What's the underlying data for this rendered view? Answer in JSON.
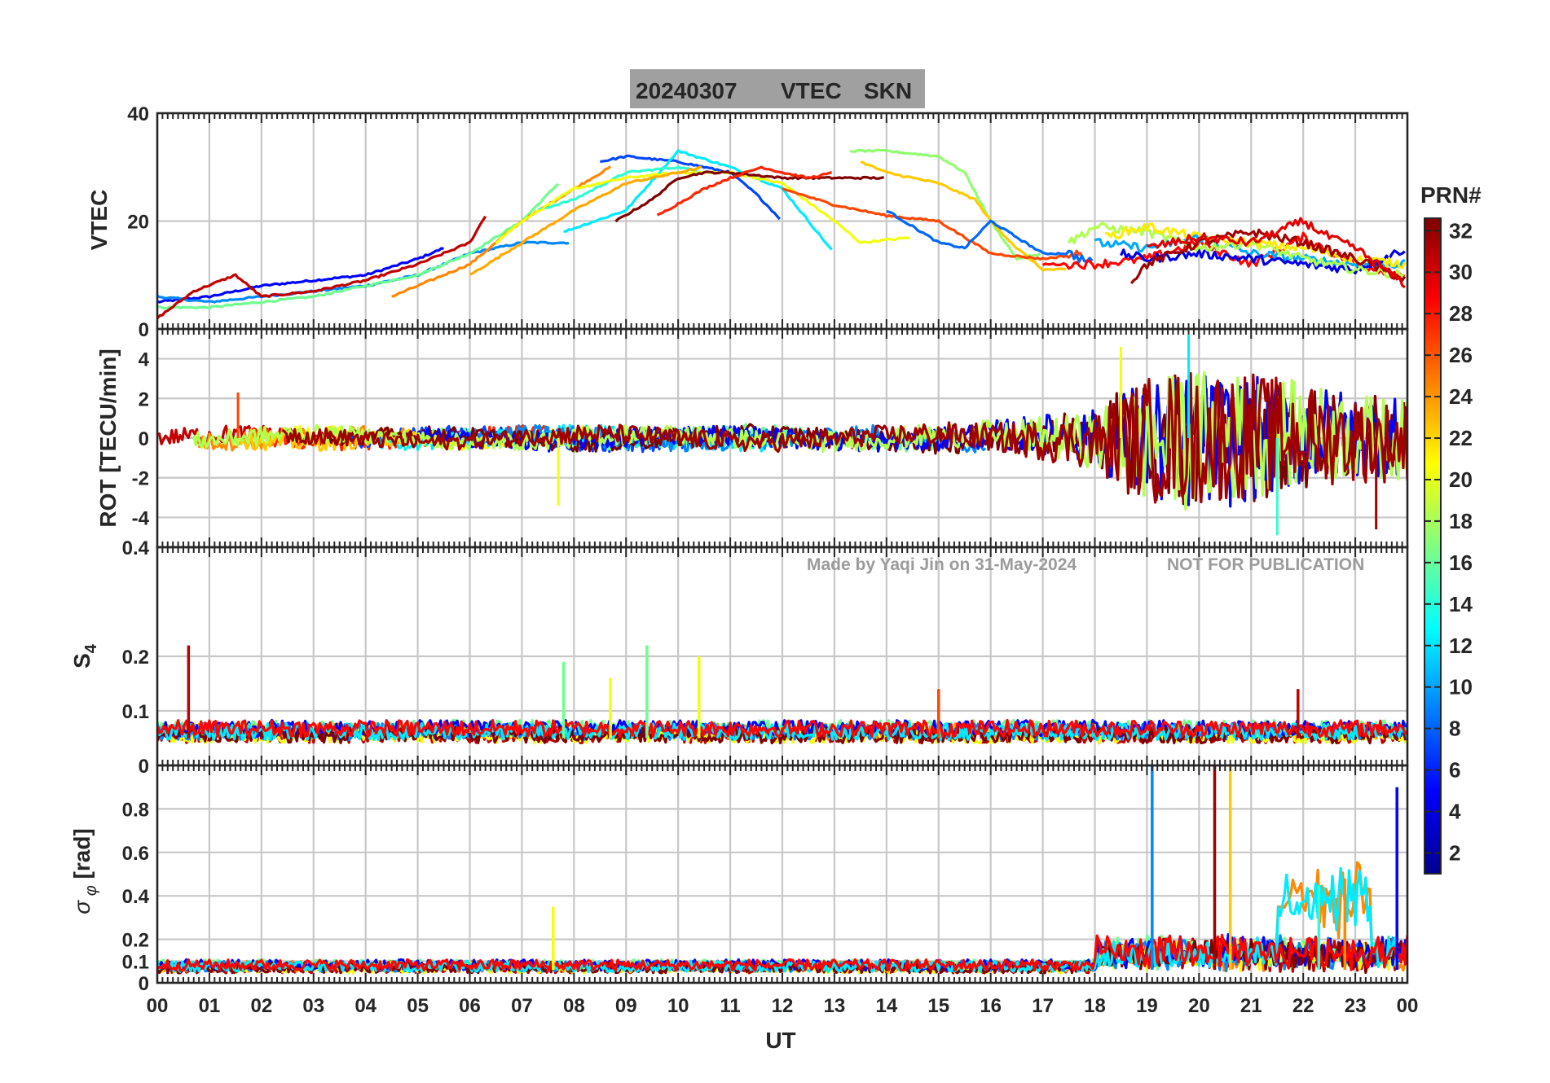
{
  "title": {
    "date": "20240307",
    "quantity": "VTEC",
    "station": "SKN"
  },
  "watermark": {
    "author": "Made by Yaqi Jin on 31-May-2024",
    "notice": "NOT FOR PUBLICATION"
  },
  "x_axis": {
    "label": "UT",
    "range_hours": [
      0,
      24
    ],
    "ticks": [
      "00",
      "01",
      "02",
      "03",
      "04",
      "05",
      "06",
      "07",
      "08",
      "09",
      "10",
      "11",
      "12",
      "13",
      "14",
      "15",
      "16",
      "17",
      "18",
      "19",
      "20",
      "21",
      "22",
      "23",
      "00"
    ]
  },
  "colorbar": {
    "label": "PRN#",
    "range": [
      1,
      32
    ],
    "ticks": [
      "2",
      "4",
      "6",
      "8",
      "10",
      "12",
      "14",
      "16",
      "18",
      "20",
      "22",
      "24",
      "26",
      "28",
      "30",
      "32"
    ],
    "colormap": [
      "#00008f",
      "#0000ff",
      "#0080ff",
      "#00ffff",
      "#80ff80",
      "#ffff00",
      "#ff8000",
      "#ff0000",
      "#800000"
    ]
  },
  "chart_data": [
    {
      "type": "line",
      "panel": "vtec",
      "ylabel": "VTEC",
      "ylim": [
        0,
        40
      ],
      "yticks": [
        "0",
        "20",
        "40"
      ],
      "series": [
        {
          "prn": 5,
          "x": [
            0,
            1,
            2,
            3,
            4,
            5,
            5.5
          ],
          "y": [
            5,
            6,
            8,
            9,
            10,
            13,
            15
          ]
        },
        {
          "prn": 9,
          "x": [
            0,
            1,
            2,
            3,
            4,
            5,
            6,
            7,
            7.9
          ],
          "y": [
            6,
            5,
            6,
            7,
            8,
            10,
            14,
            16,
            16
          ]
        },
        {
          "prn": 16,
          "x": [
            0,
            1,
            2,
            3,
            4,
            5,
            6,
            7,
            7.7
          ],
          "y": [
            4,
            4,
            5,
            6,
            8,
            10,
            14,
            20,
            27
          ]
        },
        {
          "prn": 24,
          "x": [
            4.5,
            5,
            6,
            7,
            8,
            8.7
          ],
          "y": [
            6,
            8,
            12,
            20,
            26,
            30
          ]
        },
        {
          "prn": 30,
          "x": [
            0,
            0.7,
            1.5,
            2,
            3,
            4,
            5,
            6,
            6.3
          ],
          "y": [
            2,
            7,
            10,
            6,
            7,
            9,
            12,
            16,
            21
          ]
        },
        {
          "prn": 7,
          "x": [
            8.5,
            9,
            10,
            11,
            11.5,
            12
          ],
          "y": [
            31,
            32,
            31,
            29,
            25,
            20
          ]
        },
        {
          "prn": 12,
          "x": [
            7.8,
            9,
            10,
            11,
            12,
            12.5,
            13
          ],
          "y": [
            18,
            22,
            33,
            30,
            26,
            20,
            14
          ]
        },
        {
          "prn": 14,
          "x": [
            7.3,
            8,
            9,
            10,
            10.5
          ],
          "y": [
            22,
            24,
            29,
            30,
            29
          ]
        },
        {
          "prn": 20,
          "x": [
            6.5,
            7,
            8,
            9,
            10,
            11,
            12,
            13,
            13.5,
            14.5
          ],
          "y": [
            16,
            20,
            26,
            28,
            29,
            29,
            27,
            20,
            16,
            17
          ]
        },
        {
          "prn": 23,
          "x": [
            6,
            7,
            8,
            9,
            10,
            10.5
          ],
          "y": [
            10,
            16,
            22,
            27,
            29,
            30
          ]
        },
        {
          "prn": 32,
          "x": [
            8.8,
            9.5,
            10,
            10.5,
            11,
            12,
            13,
            14
          ],
          "y": [
            20,
            24,
            28,
            29,
            29,
            28,
            28,
            28
          ]
        },
        {
          "prn": 27,
          "x": [
            9.6,
            10.5,
            11,
            11.6,
            12,
            12.5,
            13
          ],
          "y": [
            21,
            26,
            28,
            30,
            29,
            28,
            29
          ]
        },
        {
          "prn": 17,
          "x": [
            13.3,
            14,
            15,
            15.5,
            16,
            16.5,
            17
          ],
          "y": [
            33,
            33,
            32,
            29,
            20,
            13,
            14
          ]
        },
        {
          "prn": 22,
          "x": [
            13.5,
            14,
            15,
            15.7,
            16,
            16.5,
            17,
            17.5
          ],
          "y": [
            31,
            29,
            27,
            24,
            20,
            15,
            11,
            11
          ]
        },
        {
          "prn": 26,
          "x": [
            12,
            13,
            14,
            15,
            15.5,
            16,
            17,
            17.8
          ],
          "y": [
            26,
            23,
            21,
            20,
            17,
            14,
            13,
            14
          ]
        },
        {
          "prn": 8,
          "x": [
            14,
            15,
            15.5,
            16,
            17,
            17.5,
            18
          ],
          "y": [
            22,
            16,
            15,
            20,
            14,
            14,
            12
          ]
        },
        {
          "prn": 28,
          "x": [
            17,
            18,
            19,
            20,
            21,
            22,
            23,
            24
          ],
          "y": [
            12,
            12,
            13,
            16,
            12,
            17,
            12,
            10
          ]
        },
        {
          "prn": 10,
          "x": [
            18,
            19,
            20,
            21,
            22,
            23,
            24
          ],
          "y": [
            16,
            15,
            17,
            14,
            13,
            12,
            12
          ]
        },
        {
          "prn": 4,
          "x": [
            18.5,
            19,
            20,
            21,
            22,
            23,
            24
          ],
          "y": [
            14,
            13,
            14,
            13,
            12,
            11,
            15
          ]
        },
        {
          "prn": 18,
          "x": [
            17.5,
            18,
            19,
            20,
            21,
            22,
            23,
            24
          ],
          "y": [
            16,
            19,
            18,
            15,
            16,
            13,
            11,
            10
          ]
        },
        {
          "prn": 21,
          "x": [
            18.2,
            19,
            20,
            21,
            22,
            22.5,
            23,
            24
          ],
          "y": [
            17,
            19,
            17,
            16,
            15,
            14,
            13,
            12
          ]
        },
        {
          "prn": 31,
          "x": [
            18.7,
            19,
            20,
            21,
            21.5,
            22,
            23,
            24
          ],
          "y": [
            9,
            12,
            16,
            18,
            17,
            16,
            13,
            9
          ]
        },
        {
          "prn": 29,
          "x": [
            19,
            20,
            21,
            22,
            22.5,
            23,
            24
          ],
          "y": [
            15,
            17,
            16,
            20,
            17,
            15,
            8
          ]
        }
      ]
    },
    {
      "type": "line",
      "panel": "rot",
      "ylabel": "ROT [TECU/min]",
      "ylim": [
        -5.5,
        5.5
      ],
      "yticks": [
        "-4",
        "-2",
        "0",
        "2",
        "4"
      ],
      "note": "noise-like traces; envelope amplitude in TECU/min by hour",
      "envelope_hours": [
        0,
        2,
        4,
        6,
        8,
        10,
        12,
        14,
        16,
        17,
        18,
        18.5,
        19,
        20,
        21,
        22,
        23,
        24
      ],
      "envelope_amplitude": [
        0.4,
        0.5,
        0.4,
        0.4,
        0.5,
        0.5,
        0.5,
        0.5,
        0.7,
        1.0,
        1.4,
        2.5,
        3.2,
        3.6,
        3.2,
        2.6,
        2.2,
        2.0
      ],
      "notable_spikes": [
        {
          "x": 1.55,
          "y": 2.3
        },
        {
          "x": 7.7,
          "y": -3.4
        },
        {
          "x": 18.5,
          "y": 4.6
        },
        {
          "x": 19.8,
          "y": 5.2
        },
        {
          "x": 21.5,
          "y": -4.9
        },
        {
          "x": 23.4,
          "y": -4.6
        }
      ]
    },
    {
      "type": "line",
      "panel": "s4",
      "ylabel": "S4",
      "ylim": [
        0,
        0.4
      ],
      "yticks": [
        "0",
        "0.1",
        "0.2",
        "0.4"
      ],
      "baseline": 0.05,
      "notable_spikes": [
        {
          "x": 0.6,
          "y": 0.22
        },
        {
          "x": 7.8,
          "y": 0.19
        },
        {
          "x": 8.7,
          "y": 0.16
        },
        {
          "x": 9.4,
          "y": 0.22
        },
        {
          "x": 10.4,
          "y": 0.2
        },
        {
          "x": 15.0,
          "y": 0.14
        },
        {
          "x": 21.9,
          "y": 0.14
        }
      ]
    },
    {
      "type": "line",
      "panel": "sigma_phi",
      "ylabel": "σφ [rad]",
      "ylim": [
        0,
        1
      ],
      "yticks": [
        "0",
        "0.1",
        "0.2",
        "0.4",
        "0.6",
        "0.8"
      ],
      "baseline": 0.06,
      "notable_spikes": [
        {
          "x": 7.6,
          "y": 0.35
        },
        {
          "x": 19.1,
          "y": 1.0
        },
        {
          "x": 20.3,
          "y": 1.0
        },
        {
          "x": 20.6,
          "y": 1.0
        },
        {
          "x": 22.3,
          "y": 0.45
        },
        {
          "x": 22.8,
          "y": 0.48
        },
        {
          "x": 23.8,
          "y": 0.9
        }
      ]
    }
  ]
}
